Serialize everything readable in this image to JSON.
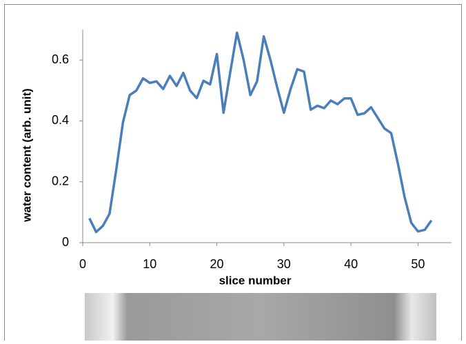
{
  "chart_data": {
    "type": "line",
    "x_label": "slice number",
    "y_label": "water content (arb. unit)",
    "x": [
      1,
      2,
      3,
      4,
      5,
      6,
      7,
      8,
      9,
      10,
      11,
      12,
      13,
      14,
      15,
      16,
      17,
      18,
      19,
      20,
      21,
      22,
      23,
      24,
      25,
      26,
      27,
      28,
      29,
      30,
      31,
      32,
      33,
      34,
      35,
      36,
      37,
      38,
      39,
      40,
      41,
      42,
      43,
      44,
      45,
      46,
      47,
      48,
      49,
      50,
      51,
      52
    ],
    "values": [
      0.08,
      0.035,
      0.055,
      0.095,
      0.24,
      0.395,
      0.485,
      0.5,
      0.54,
      0.525,
      0.53,
      0.505,
      0.548,
      0.515,
      0.558,
      0.5,
      0.475,
      0.532,
      0.52,
      0.62,
      0.427,
      0.56,
      0.69,
      0.6,
      0.485,
      0.53,
      0.678,
      0.6,
      0.51,
      0.427,
      0.505,
      0.57,
      0.562,
      0.437,
      0.45,
      0.442,
      0.467,
      0.455,
      0.474,
      0.474,
      0.42,
      0.425,
      0.445,
      0.41,
      0.375,
      0.36,
      0.26,
      0.15,
      0.065,
      0.037,
      0.042,
      0.073
    ],
    "color": "#4a7ebb",
    "xlim": [
      0,
      55
    ],
    "ylim": [
      0,
      0.7
    ],
    "xticks": [
      0,
      10,
      20,
      30,
      40,
      50
    ],
    "yticks": [
      0,
      0.2,
      0.4,
      0.6
    ],
    "grid": false
  }
}
